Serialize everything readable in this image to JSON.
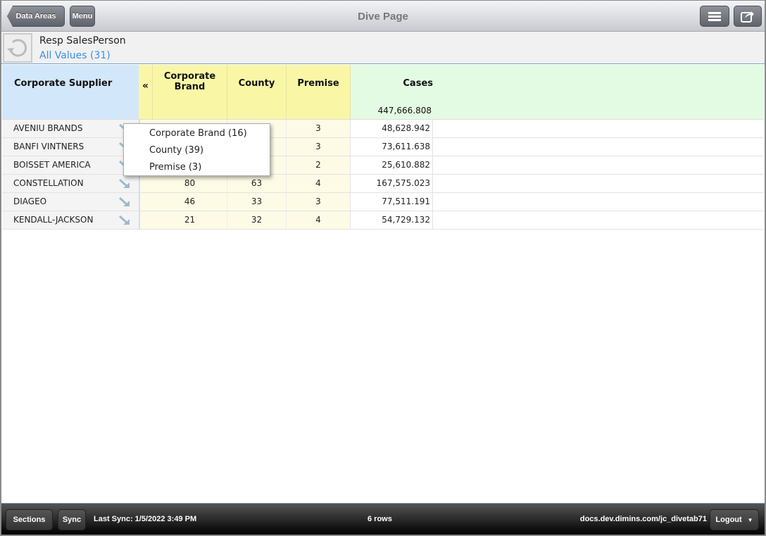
{
  "header": {
    "back_label": "Data Areas",
    "menu_label": "Menu",
    "title": "Dive Page"
  },
  "filter": {
    "label": "Resp SalesPerson",
    "value": "All Values (31)"
  },
  "table": {
    "columns": {
      "supplier": "Corporate Supplier",
      "collapse": "«",
      "brand_l1": "Corporate",
      "brand_l2": "Brand",
      "county": "County",
      "premise": "Premise",
      "cases": "Cases"
    },
    "cases_total": "447,666.808",
    "rows": [
      {
        "supplier": "AVENIU BRANDS",
        "brand": "",
        "county": "",
        "premise": "3",
        "cases": "48,628.942"
      },
      {
        "supplier": "BANFI VINTNERS",
        "brand": "",
        "county": "",
        "premise": "3",
        "cases": "73,611.638"
      },
      {
        "supplier": "BOISSET AMERICA",
        "brand": "",
        "county": "",
        "premise": "2",
        "cases": "25,610.882"
      },
      {
        "supplier": "CONSTELLATION",
        "brand": "80",
        "county": "63",
        "premise": "4",
        "cases": "167,575.023"
      },
      {
        "supplier": "DIAGEO",
        "brand": "46",
        "county": "33",
        "premise": "3",
        "cases": "77,511.191"
      },
      {
        "supplier": "KENDALL-JACKSON",
        "brand": "21",
        "county": "32",
        "premise": "4",
        "cases": "54,729.132"
      }
    ]
  },
  "popup": {
    "items": [
      "Corporate Brand (16)",
      "County (39)",
      "Premise (3)"
    ]
  },
  "footer": {
    "sections_label": "Sections",
    "sync_label": "Sync",
    "last_sync": "Last Sync: 1/5/2022 3:49 PM",
    "rows": "6 rows",
    "host": "docs.dev.dimins.com/jc_divetab71",
    "logout_label": "Logout"
  },
  "colors": {
    "supplier_header": "#d3e7fb",
    "dim_header": "#f9f7a6",
    "dim_cell": "#fdfbe6",
    "measure_header": "#e3fbe3",
    "link": "#3b8ee8"
  }
}
